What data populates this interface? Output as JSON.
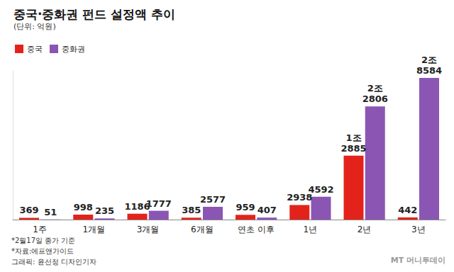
{
  "chart_data": {
    "type": "bar",
    "title": "중국·중화권 펀드 설정액 추이",
    "subtitle": "(단위: 억원)",
    "categories": [
      "1주",
      "1개월",
      "3개월",
      "6개월",
      "연초 이후",
      "1년",
      "2년",
      "3년"
    ],
    "series": [
      {
        "name": "중국",
        "color": "#e3231b",
        "values": [
          369,
          998,
          1186,
          385,
          959,
          2938,
          12885,
          442
        ],
        "value_labels": [
          "369",
          "998",
          "1186",
          "385",
          "959",
          "2938",
          "1조\n2885",
          "442"
        ]
      },
      {
        "name": "중화권",
        "color": "#8b55b3",
        "values": [
          51,
          235,
          1777,
          2577,
          407,
          4592,
          22806,
          28584
        ],
        "value_labels": [
          "51",
          "235",
          "1777",
          "2577",
          "407",
          "4592",
          "2조\n2806",
          "2조\n8584"
        ]
      }
    ],
    "ylim": [
      0,
      30000
    ],
    "grid": false,
    "legend": "top-left",
    "data_labels": true,
    "tick_labels": "x",
    "annotations": [
      "*2월17일 종가 기준",
      "*자료:에프앤가이드",
      "그래픽: 윤선정 디자인기자",
      "MT 머니투데이"
    ]
  }
}
